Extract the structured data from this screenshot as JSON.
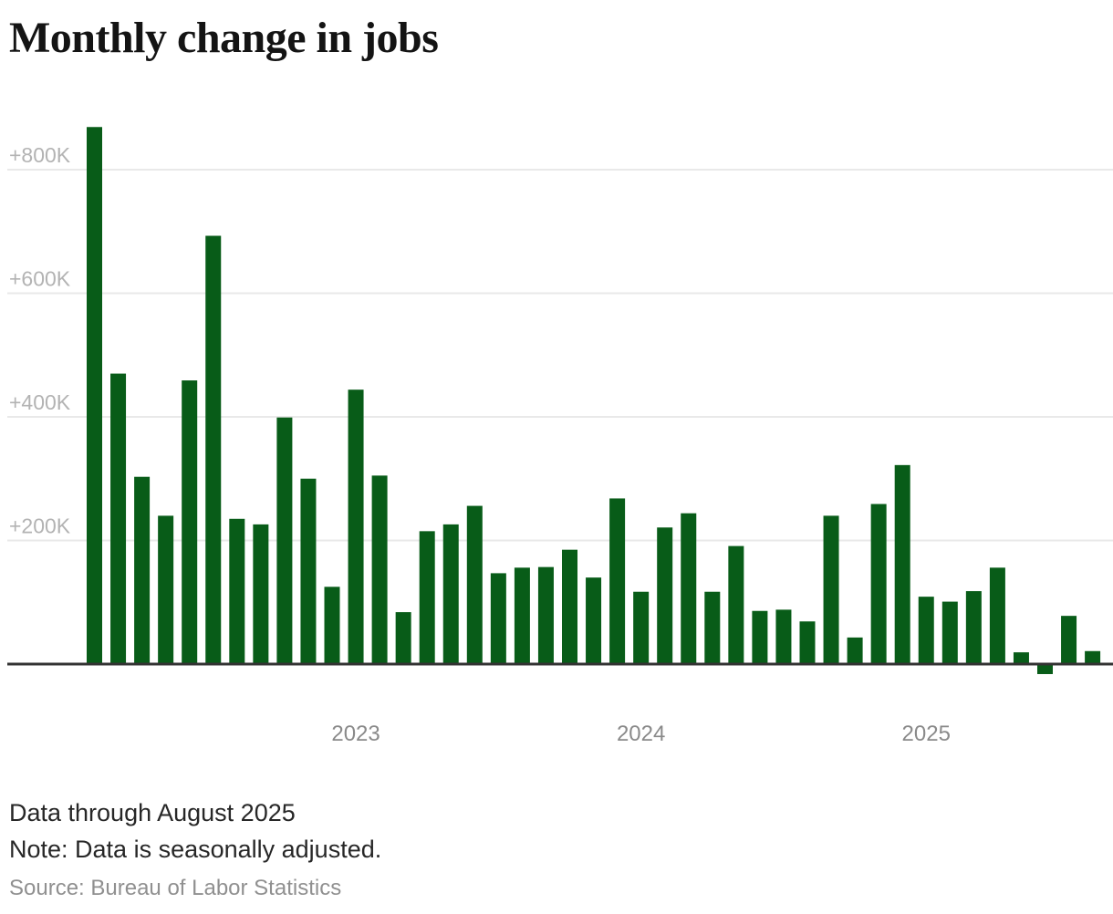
{
  "title": "Monthly change in jobs",
  "notes": {
    "data_through": "Data through August 2025",
    "note": "Note: Data is seasonally adjusted.",
    "source": "Source: Bureau of Labor Statistics"
  },
  "colors": {
    "bar": "#085c18",
    "gridline": "#e9e9e9",
    "baseline": "#333333",
    "y_label": "#b3b3b3",
    "x_label": "#8a8a8a",
    "title_text": "#141414",
    "note_text": "#272727",
    "source_text": "#909090",
    "background": "#ffffff"
  },
  "chart_data": {
    "type": "bar",
    "title": "Monthly change in jobs",
    "unit": "thousands of jobs (monthly change, seasonally adjusted)",
    "x": [
      "Feb 2022",
      "Mar 2022",
      "Apr 2022",
      "May 2022",
      "Jun 2022",
      "Jul 2022",
      "Aug 2022",
      "Sep 2022",
      "Oct 2022",
      "Nov 2022",
      "Dec 2022",
      "Jan 2023",
      "Feb 2023",
      "Mar 2023",
      "Apr 2023",
      "May 2023",
      "Jun 2023",
      "Jul 2023",
      "Aug 2023",
      "Sep 2023",
      "Oct 2023",
      "Nov 2023",
      "Dec 2023",
      "Jan 2024",
      "Feb 2024",
      "Mar 2024",
      "Apr 2024",
      "May 2024",
      "Jun 2024",
      "Jul 2024",
      "Aug 2024",
      "Sep 2024",
      "Oct 2024",
      "Nov 2024",
      "Dec 2024",
      "Jan 2025",
      "Feb 2025",
      "Mar 2025",
      "Apr 2025",
      "May 2025",
      "Jun 2025",
      "Jul 2025",
      "Aug 2025"
    ],
    "values": [
      869,
      470,
      303,
      240,
      459,
      693,
      235,
      226,
      399,
      300,
      125,
      444,
      305,
      84,
      215,
      226,
      256,
      147,
      156,
      157,
      185,
      140,
      268,
      117,
      221,
      244,
      117,
      191,
      86,
      88,
      69,
      240,
      43,
      259,
      322,
      109,
      101,
      118,
      156,
      19,
      -14,
      78,
      21
    ],
    "y_ticks": {
      "labels": [
        "+800K",
        "+600K",
        "+400K",
        "+200K"
      ],
      "values": [
        800,
        600,
        400,
        200
      ]
    },
    "x_ticks": {
      "labels": [
        "2023",
        "2024",
        "2025"
      ],
      "at_months": [
        "Jan 2023",
        "Jan 2024",
        "Jan 2025"
      ]
    },
    "ylim": [
      -50,
      900
    ],
    "grid": "horizontal",
    "legend": "none",
    "bar_color": "#085c18"
  }
}
